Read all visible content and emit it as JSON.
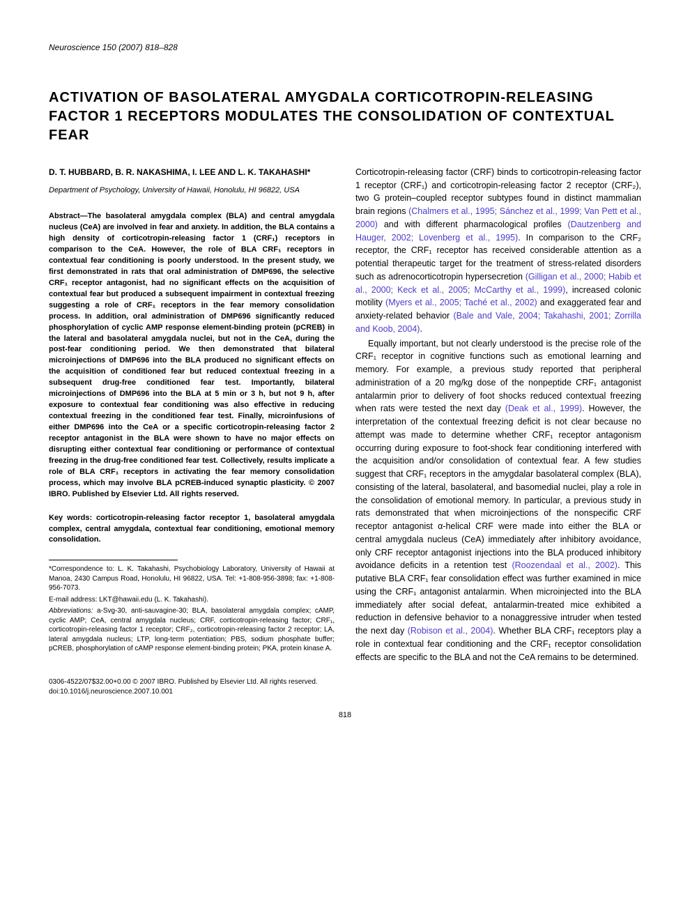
{
  "journal": {
    "name": "Neuroscience",
    "volume": "150",
    "year": "2007",
    "pages": "818–828"
  },
  "title": "ACTIVATION OF BASOLATERAL AMYGDALA CORTICOTROPIN-RELEASING FACTOR 1 RECEPTORS MODULATES THE CONSOLIDATION OF CONTEXTUAL FEAR",
  "authors": "D. T. HUBBARD, B. R. NAKASHIMA, I. LEE AND L. K. TAKAHASHI*",
  "affiliation": "Department of Psychology, University of Hawaii, Honolulu, HI 96822, USA",
  "abstract": "Abstract—The basolateral amygdala complex (BLA) and central amygdala nucleus (CeA) are involved in fear and anxiety. In addition, the BLA contains a high density of corticotropin-releasing factor 1 (CRF₁) receptors in comparison to the CeA. However, the role of BLA CRF₁ receptors in contextual fear conditioning is poorly understood. In the present study, we first demonstrated in rats that oral administration of DMP696, the selective CRF₁ receptor antagonist, had no significant effects on the acquisition of contextual fear but produced a subsequent impairment in contextual freezing suggesting a role of CRF₁ receptors in the fear memory consolidation process. In addition, oral administration of DMP696 significantly reduced phosphorylation of cyclic AMP response element-binding protein (pCREB) in the lateral and basolateral amygdala nuclei, but not in the CeA, during the post-fear conditioning period. We then demonstrated that bilateral microinjections of DMP696 into the BLA produced no significant effects on the acquisition of conditioned fear but reduced contextual freezing in a subsequent drug-free conditioned fear test. Importantly, bilateral microinjections of DMP696 into the BLA at 5 min or 3 h, but not 9 h, after exposure to contextual fear conditioning was also effective in reducing contextual freezing in the conditioned fear test. Finally, microinfusions of either DMP696 into the CeA or a specific corticotropin-releasing factor 2 receptor antagonist in the BLA were shown to have no major effects on disrupting either contextual fear conditioning or performance of contextual freezing in the drug-free conditioned fear test. Collectively, results implicate a role of BLA CRF₁ receptors in activating the fear memory consolidation process, which may involve BLA pCREB-induced synaptic plasticity. © 2007 IBRO. Published by Elsevier Ltd. All rights reserved.",
  "keywords": "Key words: corticotropin-releasing factor receptor 1, basolateral amygdala complex, central amygdala, contextual fear conditioning, emotional memory consolidation.",
  "correspondence": "*Correspondence to: L. K. Takahashi, Psychobiology Laboratory, University of Hawaii at Manoa, 2430 Campus Road, Honolulu, HI 96822, USA. Tel: +1-808-956-3898; fax: +1-808-956-7073.",
  "email_label": "E-mail address:",
  "email": "LKT@hawaii.edu (L. K. Takahashi).",
  "abbreviations_label": "Abbreviations:",
  "abbreviations": "a-Svg-30, anti-sauvagine-30; BLA, basolateral amygdala complex; cAMP, cyclic AMP; CeA, central amygdala nucleus; CRF, corticotropin-releasing factor; CRF₁, corticotropin-releasing factor 1 receptor; CRF₂, corticotropin-releasing factor 2 receptor; LA, lateral amygdala nucleus; LTP, long-term potentiation; PBS, sodium phosphate buffer; pCREB, phosphorylation of cAMP response element-binding protein; PKA, protein kinase A.",
  "body_p1_a": "Corticotropin-releasing factor (CRF) binds to corticotropin-releasing factor 1 receptor (CRF₁) and corticotropin-releasing factor 2 receptor (CRF₂), two G protein–coupled receptor subtypes found in distinct mammalian brain regions ",
  "body_p1_cite1": "(Chalmers et al., 1995; Sánchez et al., 1999; Van Pett et al., 2000)",
  "body_p1_b": " and with different pharmacological profiles ",
  "body_p1_cite2": "(Dautzenberg and Hauger, 2002; Lovenberg et al., 1995)",
  "body_p1_c": ". In comparison to the CRF₂ receptor, the CRF₁ receptor has received considerable attention as a potential therapeutic target for the treatment of stress-related disorders such as adrenocorticotropin hypersecretion ",
  "body_p1_cite3": "(Gilligan et al., 2000; Habib et al., 2000; Keck et al., 2005; McCarthy et al., 1999)",
  "body_p1_d": ", increased colonic motility ",
  "body_p1_cite4": "(Myers et al., 2005; Taché et al., 2002)",
  "body_p1_e": " and exaggerated fear and anxiety-related behavior ",
  "body_p1_cite5": "(Bale and Vale, 2004; Takahashi, 2001; Zorrilla and Koob, 2004)",
  "body_p1_f": ".",
  "body_p2_a": "Equally important, but not clearly understood is the precise role of the CRF₁ receptor in cognitive functions such as emotional learning and memory. For example, a previous study reported that peripheral administration of a 20 mg/kg dose of the nonpeptide CRF₁ antagonist antalarmin prior to delivery of foot shocks reduced contextual freezing when rats were tested the next day ",
  "body_p2_cite1": "(Deak et al., 1999)",
  "body_p2_b": ". However, the interpretation of the contextual freezing deficit is not clear because no attempt was made to determine whether CRF₁ receptor antagonism occurring during exposure to foot-shock fear conditioning interfered with the acquisition and/or consolidation of contextual fear. A few studies suggest that CRF₁ receptors in the amygdalar basolateral complex (BLA), consisting of the lateral, basolateral, and basomedial nuclei, play a role in the consolidation of emotional memory. In particular, a previous study in rats demonstrated that when microinjections of the nonspecific CRF receptor antagonist α-helical CRF were made into either the BLA or central amygdala nucleus (CeA) immediately after inhibitory avoidance, only CRF receptor antagonist injections into the BLA produced inhibitory avoidance deficits in a retention test ",
  "body_p2_cite2": "(Roozendaal et al., 2002)",
  "body_p2_c": ". This putative BLA CRF₁ fear consolidation effect was further examined in mice using the CRF₁ antagonist antalarmin. When microinjected into the BLA immediately after social defeat, antalarmin-treated mice exhibited a reduction in defensive behavior to a nonaggressive intruder when tested the next day ",
  "body_p2_cite3": "(Robison et al., 2004)",
  "body_p2_d": ". Whether BLA CRF₁ receptors play a role in contextual fear conditioning and the CRF₁ receptor consolidation effects are specific to the BLA and not the CeA remains to be determined.",
  "footer_line1": "0306-4522/07$32.00+0.00 © 2007 IBRO. Published by Elsevier Ltd. All rights reserved.",
  "footer_line2": "doi:10.1016/j.neuroscience.2007.10.001",
  "page_number": "818",
  "colors": {
    "text": "#000000",
    "citation": "#4a3bcc",
    "background": "#ffffff"
  },
  "typography": {
    "title_fontsize": 20,
    "body_fontsize": 12.5,
    "abstract_fontsize": 11,
    "footnote_fontsize": 10
  }
}
